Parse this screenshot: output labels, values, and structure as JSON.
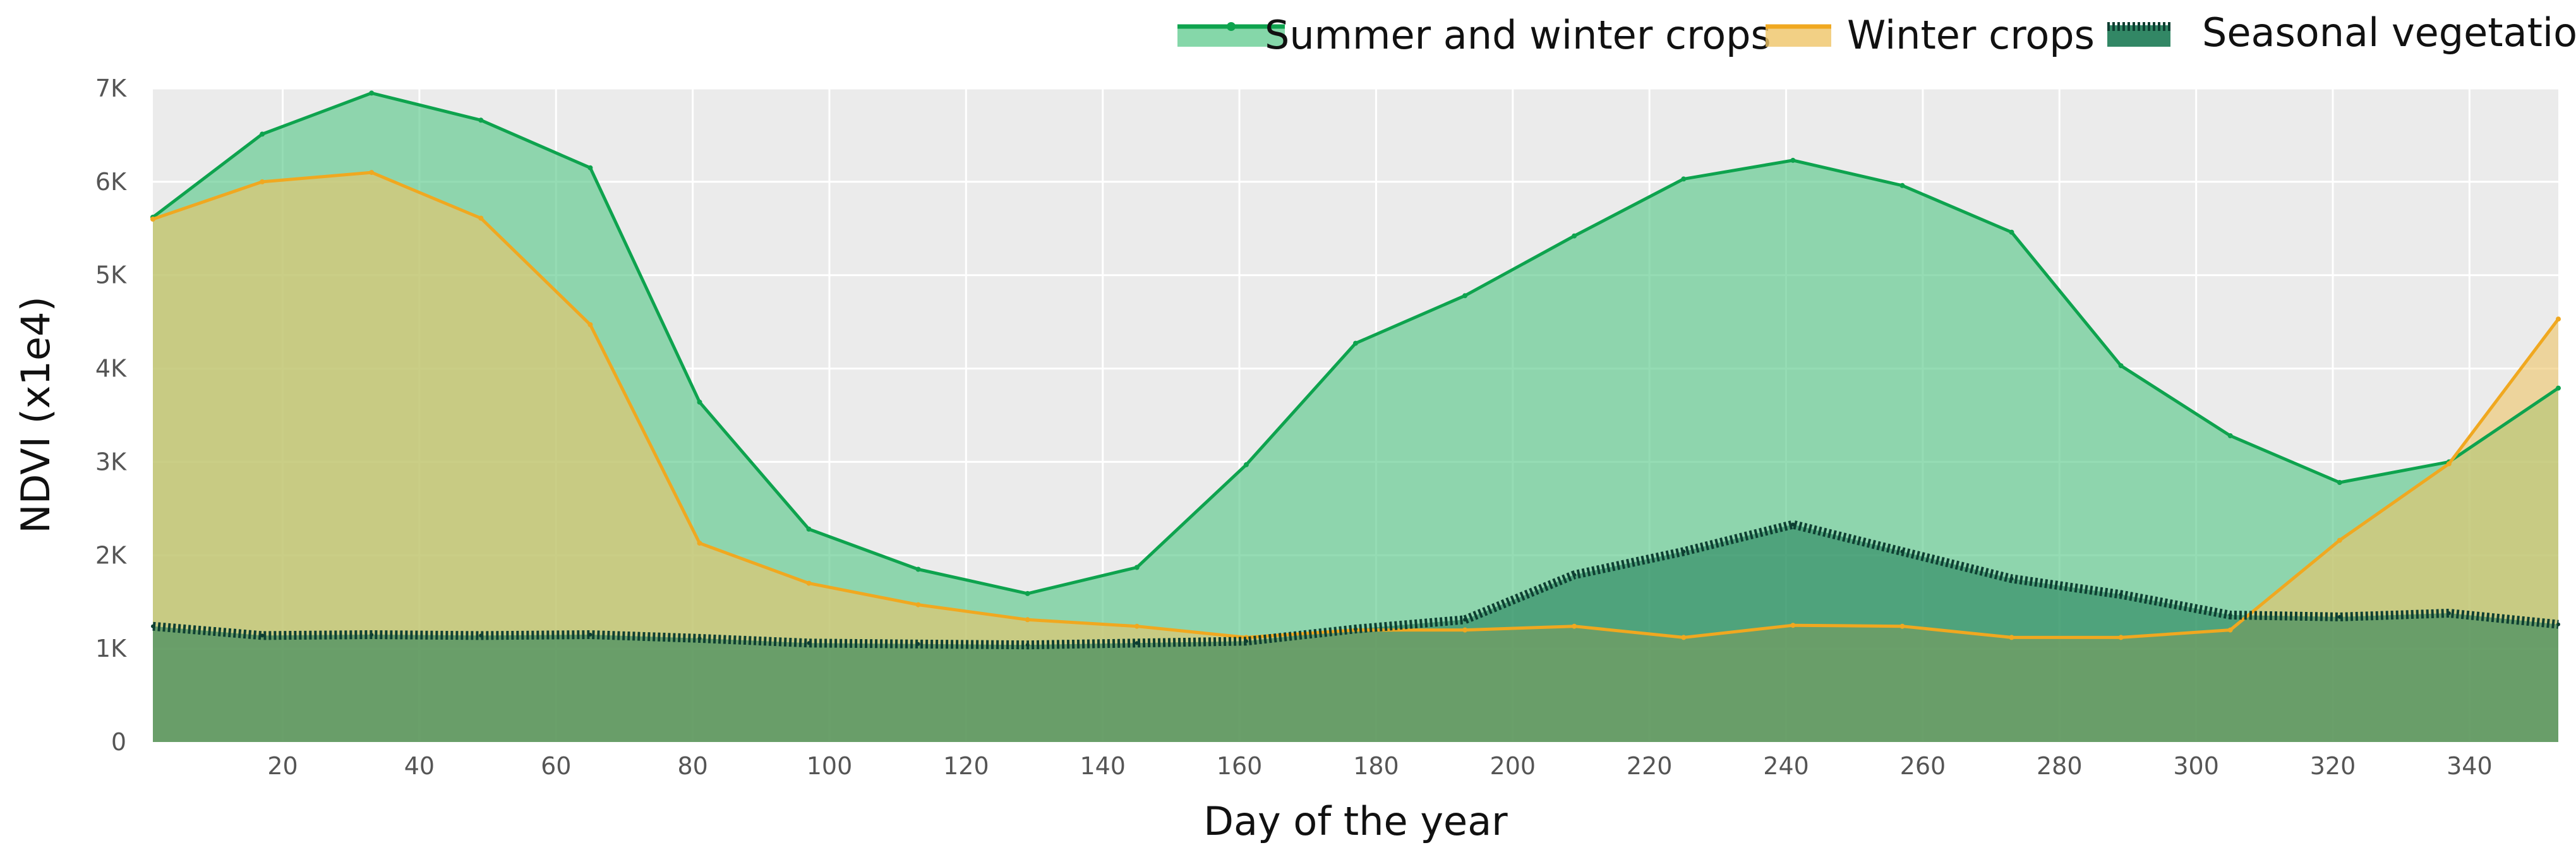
{
  "chart_data": {
    "type": "area",
    "title": "",
    "xlabel": "Day of the year",
    "ylabel": "NDVI (x1e4)",
    "xlim": [
      1,
      353
    ],
    "ylim": [
      0,
      7000
    ],
    "x_ticks": [
      20,
      40,
      60,
      80,
      100,
      120,
      140,
      160,
      180,
      200,
      220,
      240,
      260,
      280,
      300,
      320,
      340
    ],
    "y_ticks": [
      {
        "value": 0,
        "label": "0"
      },
      {
        "value": 1000,
        "label": "1K"
      },
      {
        "value": 2000,
        "label": "2K"
      },
      {
        "value": 3000,
        "label": "3K"
      },
      {
        "value": 4000,
        "label": "4K"
      },
      {
        "value": 5000,
        "label": "5K"
      },
      {
        "value": 6000,
        "label": "6K"
      },
      {
        "value": 7000,
        "label": "7K"
      }
    ],
    "grid": true,
    "legend_position": "top-right",
    "x": [
      1,
      17,
      33,
      49,
      65,
      81,
      97,
      113,
      129,
      145,
      161,
      177,
      193,
      209,
      225,
      241,
      257,
      273,
      289,
      305,
      321,
      337,
      353
    ],
    "series": [
      {
        "name": "Summer and winter crops",
        "line_color": "#0ea34e",
        "fill_color": "#5cc98c",
        "fill_opacity": 0.65,
        "line_style": "solid",
        "values": [
          5620,
          6510,
          6950,
          6660,
          6150,
          3640,
          2280,
          1850,
          1590,
          1870,
          2970,
          4270,
          4780,
          5420,
          6030,
          6230,
          5960,
          5460,
          4030,
          3280,
          2780,
          3000,
          3790
        ]
      },
      {
        "name": "Winter crops",
        "line_color": "#f0a820",
        "fill_color": "#efc467",
        "fill_opacity": 0.6,
        "line_style": "solid",
        "values": [
          5600,
          6000,
          6100,
          5610,
          4470,
          2130,
          1700,
          1470,
          1310,
          1240,
          1120,
          1200,
          1200,
          1240,
          1120,
          1250,
          1240,
          1120,
          1120,
          1200,
          2160,
          2980,
          4530
        ]
      },
      {
        "name": "Seasonal vegetation",
        "line_color": "#0e3f32",
        "fill_color": "#1c7a54",
        "fill_opacity": 0.55,
        "line_style": "dotted",
        "values": [
          1240,
          1140,
          1150,
          1140,
          1150,
          1110,
          1060,
          1050,
          1040,
          1060,
          1080,
          1210,
          1310,
          1790,
          2040,
          2330,
          2040,
          1750,
          1580,
          1360,
          1340,
          1380,
          1260
        ]
      }
    ]
  }
}
